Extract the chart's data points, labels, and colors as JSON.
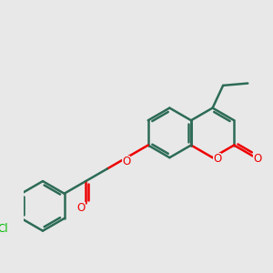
{
  "bg_color": "#e8e8e8",
  "bond_color": "#2d6b56",
  "oxygen_color": "#ee0000",
  "chlorine_color": "#00bb00",
  "lw": 1.8,
  "dbo": 0.11,
  "BL": 1.0,
  "xlim": [
    0,
    10
  ],
  "ylim": [
    0,
    10
  ],
  "label_fontsize": 8.5
}
